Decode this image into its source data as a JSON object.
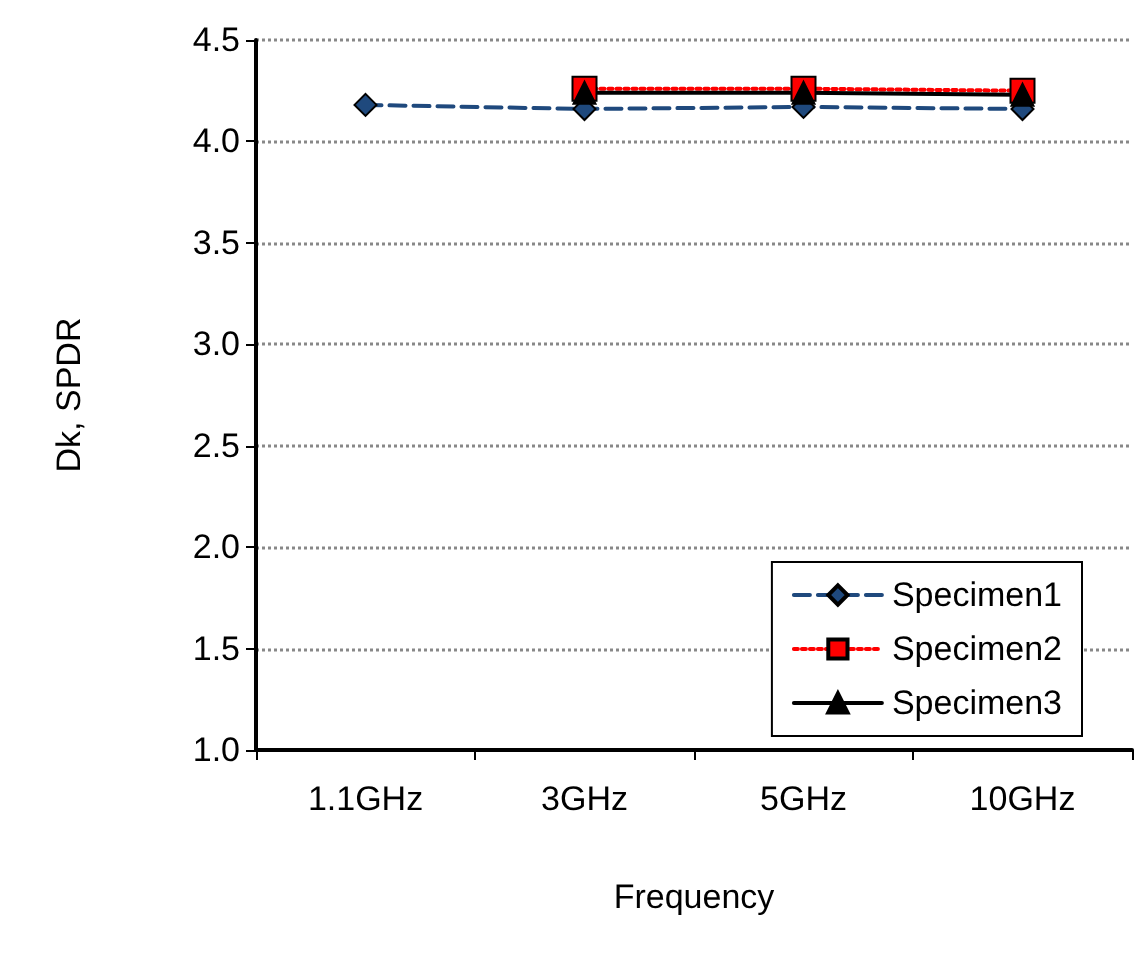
{
  "chart_data": {
    "type": "line",
    "xlabel": "Frequency",
    "ylabel": "Dk, SPDR",
    "categories": [
      "1.1GHz",
      "3GHz",
      "5GHz",
      "10GHz"
    ],
    "series": [
      {
        "name": "Specimen1",
        "color": "#1f497d",
        "values": [
          4.18,
          4.16,
          4.17,
          4.16
        ],
        "marker": "diamond",
        "line_style": "dashed"
      },
      {
        "name": "Specimen2",
        "color": "#ff0000",
        "values": [
          null,
          4.26,
          4.26,
          4.25
        ],
        "marker": "square",
        "line_style": "dotted"
      },
      {
        "name": "Specimen3",
        "color": "#000000",
        "values": [
          null,
          4.24,
          4.24,
          4.23
        ],
        "marker": "triangle",
        "line_style": "solid"
      }
    ],
    "ylim": [
      1.0,
      4.5
    ],
    "yticks": [
      {
        "value": 1,
        "label": "1.0"
      },
      1.5,
      {
        "value": 2,
        "label": "2.0"
      },
      2.5,
      {
        "value": 3,
        "label": "3.0"
      },
      3.5,
      {
        "value": 4,
        "label": "4.0"
      },
      4.5
    ],
    "grid": "y",
    "legend": "bottom right"
  }
}
